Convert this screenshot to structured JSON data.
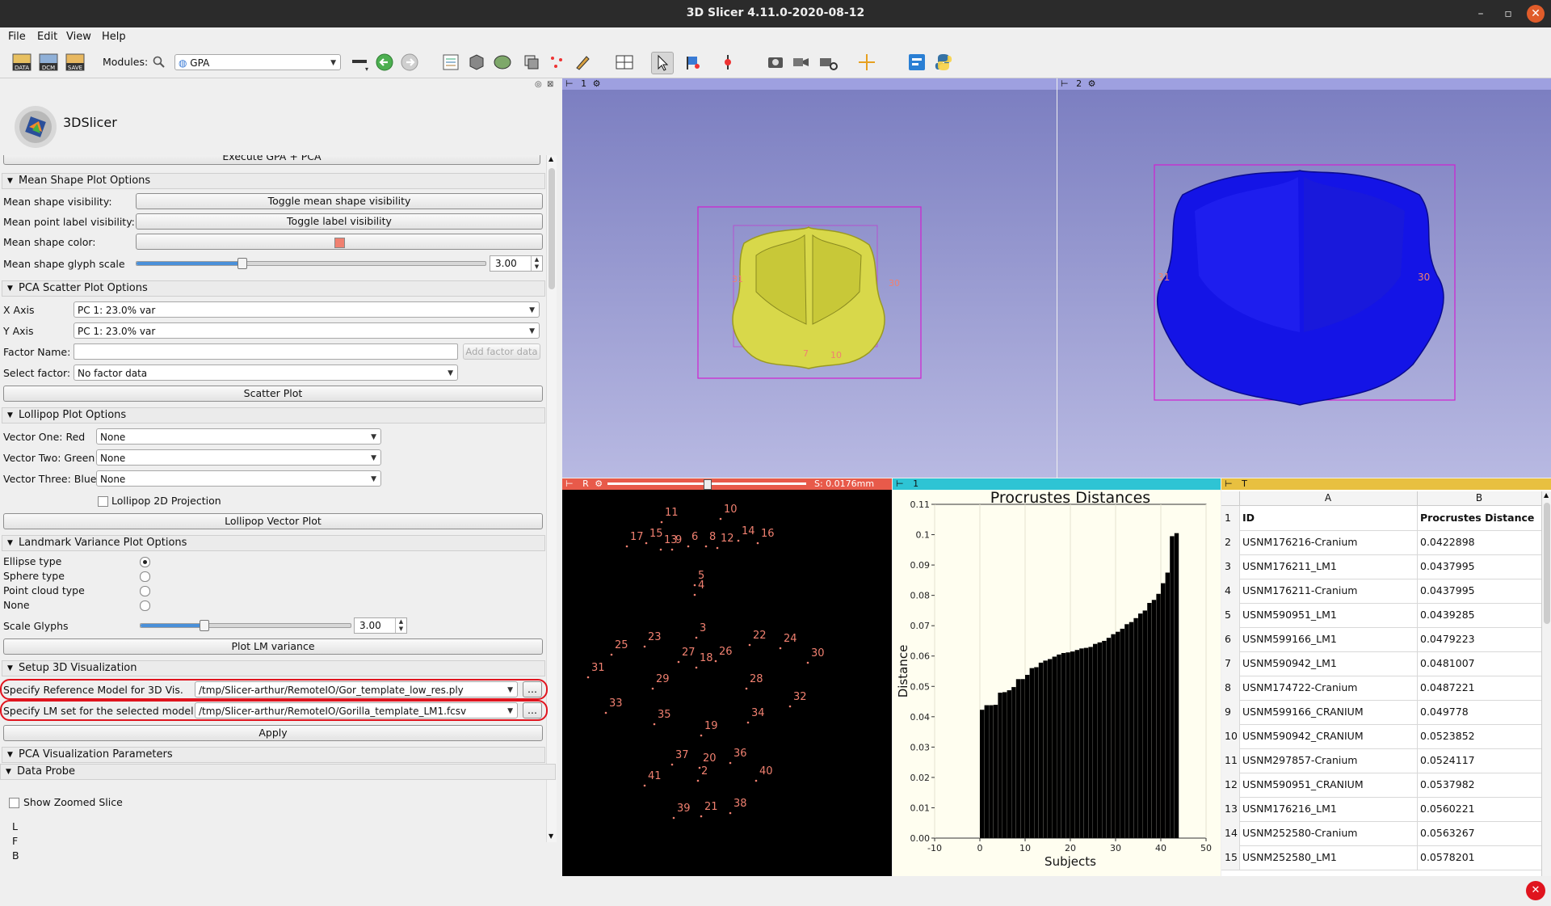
{
  "window": {
    "title": "3D Slicer 4.11.0-2020-08-12",
    "minimize_glyph": "–",
    "restore_glyph": "▫",
    "close_glyph": "✕"
  },
  "menu": {
    "file": "File",
    "edit": "Edit",
    "view": "View",
    "help": "Help"
  },
  "toolbar": {
    "icons": [
      "data-icon",
      "dcm-icon",
      "save-icon"
    ],
    "icon_labels": {
      "data": "DATA",
      "dcm": "DCM",
      "save": "SAVE"
    },
    "modules_label": "Modules:",
    "module_selected": "GPA"
  },
  "logo": {
    "text": "3DSlicer"
  },
  "gpa": {
    "execute_label": "Execute GPA + PCA",
    "mean_shape": {
      "title": "Mean Shape Plot Options",
      "visibility_label": "Mean shape visibility:",
      "visibility_button": "Toggle mean shape visibility",
      "label_visibility_label": "Mean point label visibility:",
      "label_visibility_button": "Toggle label visibility",
      "color_label": "Mean shape color:",
      "color": "#f08070",
      "glyph_scale_label": "Mean shape glyph scale",
      "glyph_scale_value": "3.00",
      "glyph_scale_fraction": 0.3
    },
    "pca_scatter": {
      "title": "PCA Scatter Plot Options",
      "x_axis_label": "X Axis",
      "x_axis_value": "PC 1: 23.0% var",
      "y_axis_label": "Y Axis",
      "y_axis_value": "PC 1: 23.0% var",
      "factor_name_label": "Factor Name:",
      "factor_name_value": "",
      "add_factor_button": "Add factor data",
      "select_factor_label": "Select factor:",
      "select_factor_value": "No factor data",
      "scatter_button": "Scatter Plot"
    },
    "lollipop": {
      "title": "Lollipop Plot Options",
      "vector_one_label": "Vector One: Red",
      "vector_one_value": "None",
      "vector_two_label": "Vector Two: Green",
      "vector_two_value": "None",
      "vector_three_label": "Vector Three: Blue",
      "vector_three_value": "None",
      "projection_label": "Lollipop 2D Projection",
      "projection_checked": false,
      "plot_button": "Lollipop Vector Plot"
    },
    "landmark_variance": {
      "title": "Landmark Variance Plot Options",
      "options": [
        "Ellipse type",
        "Sphere type",
        "Point cloud type",
        "None"
      ],
      "selected": 0,
      "scale_label": "Scale Glyphs",
      "scale_value": "3.00",
      "scale_fraction": 0.3,
      "plot_button": "Plot LM variance"
    },
    "setup_3d": {
      "title": "Setup 3D Visualization",
      "ref_model_label": "Specify Reference Model for 3D Vis.",
      "ref_model_path": "/tmp/Slicer-arthur/RemoteIO/Gor_template_low_res.ply",
      "lm_set_label": "Specify LM set for the selected model:",
      "lm_set_path": "/tmp/Slicer-arthur/RemoteIO/Gorilla_template_LM1.fcsv",
      "browse_label": "...",
      "apply_button": "Apply"
    },
    "pca_vis": {
      "title": "PCA Visualization Parameters"
    }
  },
  "data_probe": {
    "title": "Data Probe",
    "show_zoomed_label": "Show Zoomed Slice",
    "rows": [
      "L",
      "F",
      "B"
    ]
  },
  "views": {
    "view1_label": "1",
    "view2_label": "2",
    "view1_landmarks": [
      "31",
      "30",
      "7",
      "10"
    ],
    "view2_landmarks": [
      "31",
      "30"
    ],
    "slice_label": "R",
    "slice_offset": "S: 0.0176mm",
    "slice_position_fraction": 0.5,
    "chart_view_label": "1",
    "table_view_label": "T",
    "slice_points": [
      {
        "n": "11"
      },
      {
        "n": "10"
      },
      {
        "n": "17"
      },
      {
        "n": "15"
      },
      {
        "n": "13"
      },
      {
        "n": "9"
      },
      {
        "n": "6"
      },
      {
        "n": "8"
      },
      {
        "n": "12"
      },
      {
        "n": "14"
      },
      {
        "n": "16"
      },
      {
        "n": "5"
      },
      {
        "n": "4"
      },
      {
        "n": "3"
      },
      {
        "n": "25"
      },
      {
        "n": "23"
      },
      {
        "n": "27"
      },
      {
        "n": "18"
      },
      {
        "n": "26"
      },
      {
        "n": "22"
      },
      {
        "n": "24"
      },
      {
        "n": "30"
      },
      {
        "n": "31"
      },
      {
        "n": "29"
      },
      {
        "n": "28"
      },
      {
        "n": "33"
      },
      {
        "n": "35"
      },
      {
        "n": "32"
      },
      {
        "n": "34"
      },
      {
        "n": "19"
      },
      {
        "n": "37"
      },
      {
        "n": "20"
      },
      {
        "n": "36"
      },
      {
        "n": "2"
      },
      {
        "n": "40"
      },
      {
        "n": "41"
      },
      {
        "n": "39"
      },
      {
        "n": "21"
      },
      {
        "n": "38"
      }
    ]
  },
  "chart_data": {
    "type": "bar",
    "title": "Procrustes Distances",
    "xlabel": "Subjects",
    "ylabel": "Distance",
    "xlim": [
      -10,
      50
    ],
    "ylim": [
      0,
      0.11
    ],
    "x_ticks": [
      "-10",
      "0",
      "10",
      "20",
      "30",
      "40",
      "50"
    ],
    "y_ticks": [
      "0.00",
      "0.01",
      "0.02",
      "0.03",
      "0.04",
      "0.05",
      "0.06",
      "0.07",
      "0.08",
      "0.09",
      "0.1",
      "0.11"
    ],
    "values": [
      0.0422898,
      0.0437995,
      0.0437995,
      0.0439285,
      0.0479223,
      0.0481007,
      0.0487221,
      0.049778,
      0.0523852,
      0.0524117,
      0.0537982,
      0.0560221,
      0.0563267,
      0.0578201,
      0.0585,
      0.059,
      0.0598,
      0.0605,
      0.061,
      0.0612,
      0.0615,
      0.062,
      0.0625,
      0.0627,
      0.063,
      0.064,
      0.0645,
      0.065,
      0.066,
      0.0672,
      0.068,
      0.069,
      0.0705,
      0.0712,
      0.0725,
      0.074,
      0.075,
      0.0775,
      0.0785,
      0.0805,
      0.084,
      0.0875,
      0.0995,
      0.1005
    ]
  },
  "table": {
    "columns": [
      "A",
      "B"
    ],
    "rows": [
      {
        "n": "1",
        "a": "ID",
        "b": "Procrustes Distance"
      },
      {
        "n": "2",
        "a": "USNM176216-Cranium",
        "b": "0.0422898"
      },
      {
        "n": "3",
        "a": "USNM176211_LM1",
        "b": "0.0437995"
      },
      {
        "n": "4",
        "a": "USNM176211-Cranium",
        "b": "0.0437995"
      },
      {
        "n": "5",
        "a": "USNM590951_LM1",
        "b": "0.0439285"
      },
      {
        "n": "6",
        "a": "USNM599166_LM1",
        "b": "0.0479223"
      },
      {
        "n": "7",
        "a": "USNM590942_LM1",
        "b": "0.0481007"
      },
      {
        "n": "8",
        "a": "USNM174722-Cranium",
        "b": "0.0487221"
      },
      {
        "n": "9",
        "a": "USNM599166_CRANIUM",
        "b": "0.049778"
      },
      {
        "n": "10",
        "a": "USNM590942_CRANIUM",
        "b": "0.0523852"
      },
      {
        "n": "11",
        "a": "USNM297857-Cranium",
        "b": "0.0524117"
      },
      {
        "n": "12",
        "a": "USNM590951_CRANIUM",
        "b": "0.0537982"
      },
      {
        "n": "13",
        "a": "USNM176216_LM1",
        "b": "0.0560221"
      },
      {
        "n": "14",
        "a": "USNM252580-Cranium",
        "b": "0.0563267"
      },
      {
        "n": "15",
        "a": "USNM252580_LM1",
        "b": "0.0578201"
      }
    ]
  },
  "error_icon": "error-icon"
}
